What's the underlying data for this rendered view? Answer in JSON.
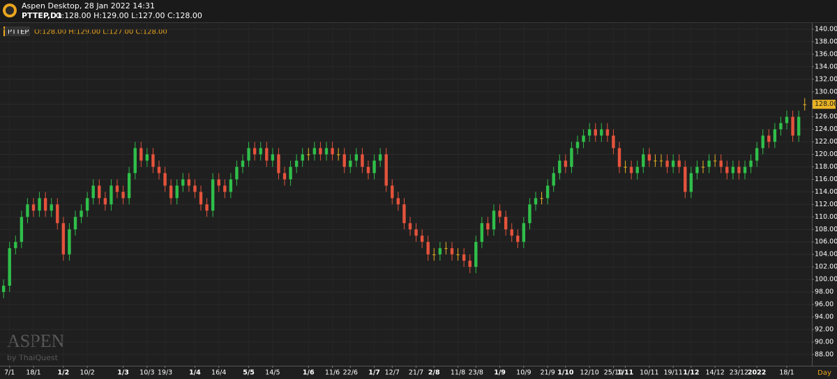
{
  "header": {
    "app_title": "Aspen Desktop, 28 Jan 2022 14:31",
    "symbol": "PTTEP,D1",
    "ohlc": "O:128.00 H:129.00 L:127.00 C:128.00"
  },
  "watermark": {
    "brand": "ASPEN",
    "by": "by ThaiQuest"
  },
  "chart_data": {
    "type": "candlestick",
    "symbol_tag": "PTTEP",
    "ohlc_label": "O:128.00 H:129.00 L:127.00 C:128.00",
    "x_unit": "Day",
    "up_color": "#2fbf4a",
    "down_color": "#e5533c",
    "flat_color": "#e9b324",
    "grid": true,
    "ylim": [
      86.2,
      141
    ],
    "yticks": [
      {
        "value": 88,
        "label": "88.00"
      },
      {
        "value": 90,
        "label": "90.00"
      },
      {
        "value": 92,
        "label": "92.00"
      },
      {
        "value": 94,
        "label": "94.00"
      },
      {
        "value": 96,
        "label": "96.00"
      },
      {
        "value": 98,
        "label": "98.00"
      },
      {
        "value": 100,
        "label": "100.00"
      },
      {
        "value": 102,
        "label": "102.00"
      },
      {
        "value": 104,
        "label": "104.00"
      },
      {
        "value": 106,
        "label": "106.00"
      },
      {
        "value": 108,
        "label": "108.00"
      },
      {
        "value": 110,
        "label": "110.00"
      },
      {
        "value": 112,
        "label": "112.00"
      },
      {
        "value": 114,
        "label": "114.00"
      },
      {
        "value": 116,
        "label": "116.00"
      },
      {
        "value": 118,
        "label": "118.00"
      },
      {
        "value": 120,
        "label": "120.00"
      },
      {
        "value": 122,
        "label": "122.00"
      },
      {
        "value": 124,
        "label": "124.00"
      },
      {
        "value": 126,
        "label": "126.00"
      },
      {
        "value": 128,
        "label": "128.00"
      },
      {
        "value": 130,
        "label": "130.00"
      },
      {
        "value": 132,
        "label": "132.00"
      },
      {
        "value": 134,
        "label": "134.00"
      },
      {
        "value": 136,
        "label": "136.00"
      },
      {
        "value": 138,
        "label": "138.00"
      },
      {
        "value": 140,
        "label": "140.00"
      }
    ],
    "last_price": {
      "value": 128,
      "label": "128.00"
    },
    "xlim": [
      -0.6,
      135.2
    ],
    "xticks": [
      {
        "value": 1,
        "label": "7/1"
      },
      {
        "value": 5,
        "label": "18/1"
      },
      {
        "value": 10,
        "label": "1/2"
      },
      {
        "value": 14,
        "label": "10/2"
      },
      {
        "value": 20,
        "label": "1/3"
      },
      {
        "value": 24,
        "label": "10/3"
      },
      {
        "value": 27,
        "label": "19/3"
      },
      {
        "value": 32,
        "label": "1/4"
      },
      {
        "value": 36,
        "label": "16/4"
      },
      {
        "value": 41,
        "label": "5/5"
      },
      {
        "value": 45,
        "label": "14/5"
      },
      {
        "value": 51,
        "label": "1/6"
      },
      {
        "value": 55,
        "label": "11/6"
      },
      {
        "value": 58,
        "label": "22/6"
      },
      {
        "value": 62,
        "label": "1/7"
      },
      {
        "value": 65,
        "label": "12/7"
      },
      {
        "value": 69,
        "label": "21/7"
      },
      {
        "value": 72,
        "label": "2/8"
      },
      {
        "value": 76,
        "label": "11/8"
      },
      {
        "value": 79,
        "label": "23/8"
      },
      {
        "value": 83,
        "label": "1/9"
      },
      {
        "value": 87,
        "label": "10/9"
      },
      {
        "value": 91,
        "label": "21/9"
      },
      {
        "value": 94,
        "label": "1/10"
      },
      {
        "value": 98,
        "label": "12/10"
      },
      {
        "value": 102,
        "label": "25/10"
      },
      {
        "value": 104,
        "label": "1/11"
      },
      {
        "value": 108,
        "label": "10/11"
      },
      {
        "value": 112,
        "label": "19/11"
      },
      {
        "value": 115,
        "label": "1/12"
      },
      {
        "value": 119,
        "label": "14/12"
      },
      {
        "value": 123,
        "label": "23/12"
      },
      {
        "value": 126,
        "label": "2022"
      },
      {
        "value": 131,
        "label": "18/1"
      }
    ],
    "xtick_major": [
      false,
      false,
      true,
      false,
      true,
      false,
      false,
      true,
      false,
      true,
      false,
      true,
      false,
      false,
      true,
      false,
      false,
      true,
      false,
      false,
      true,
      false,
      false,
      true,
      false,
      false,
      true,
      false,
      false,
      true,
      false,
      false,
      true,
      false
    ],
    "open": [
      98,
      99,
      105,
      106,
      110,
      112,
      111,
      113,
      111,
      112,
      109,
      104,
      108,
      110,
      111,
      113,
      115,
      113,
      112,
      115,
      114,
      113,
      117,
      121,
      119,
      120,
      118,
      117,
      115,
      113,
      115,
      116,
      115,
      114,
      112,
      111,
      116,
      115,
      114,
      116,
      118,
      119,
      121,
      120,
      121,
      119,
      120,
      117,
      116,
      118,
      119,
      120,
      120,
      121,
      120,
      121,
      120,
      120,
      118,
      119,
      120,
      118,
      117,
      119,
      120,
      115,
      113,
      112,
      109,
      108,
      107,
      106,
      104,
      104,
      105,
      105,
      104,
      104,
      103,
      102,
      106,
      109,
      108,
      111,
      110,
      108,
      107,
      106,
      109,
      112,
      113,
      113,
      115,
      117,
      119,
      118,
      121,
      122,
      123,
      124,
      123,
      124,
      123,
      121,
      118,
      118,
      117,
      118,
      120,
      119,
      119,
      119,
      118,
      119,
      118,
      114,
      117,
      118,
      118,
      119,
      119,
      118,
      117,
      118,
      117,
      118,
      119,
      121,
      123,
      122,
      124,
      125,
      126,
      123,
      128
    ],
    "high": [
      100,
      106,
      107,
      111,
      113,
      113,
      114,
      114,
      113,
      113,
      110,
      109,
      111,
      112,
      114,
      116,
      116,
      114,
      116,
      116,
      115,
      118,
      122,
      122,
      121,
      121,
      119,
      118,
      116,
      116,
      117,
      117,
      116,
      115,
      113,
      117,
      117,
      116,
      117,
      119,
      120,
      122,
      122,
      122,
      122,
      121,
      121,
      118,
      119,
      120,
      121,
      121,
      122,
      122,
      122,
      122,
      121,
      121,
      120,
      121,
      121,
      119,
      120,
      121,
      121,
      116,
      114,
      113,
      110,
      109,
      108,
      107,
      105,
      106,
      106,
      106,
      105,
      105,
      104,
      107,
      110,
      110,
      112,
      112,
      111,
      109,
      108,
      110,
      113,
      114,
      114,
      116,
      118,
      120,
      120,
      122,
      123,
      124,
      125,
      125,
      125,
      125,
      124,
      122,
      119,
      119,
      119,
      121,
      121,
      120,
      120,
      120,
      120,
      120,
      119,
      118,
      119,
      119,
      120,
      120,
      120,
      119,
      119,
      119,
      119,
      120,
      122,
      124,
      124,
      125,
      126,
      127,
      127,
      127,
      129
    ],
    "low": [
      97,
      98,
      104,
      105,
      109,
      110,
      110,
      110,
      110,
      108,
      103,
      103,
      107,
      109,
      110,
      112,
      112,
      111,
      111,
      113,
      112,
      112,
      116,
      118,
      118,
      117,
      116,
      114,
      112,
      112,
      114,
      114,
      113,
      111,
      110,
      110,
      114,
      113,
      113,
      115,
      117,
      118,
      119,
      119,
      118,
      118,
      116,
      115,
      115,
      117,
      118,
      119,
      119,
      119,
      119,
      119,
      119,
      117,
      117,
      118,
      117,
      116,
      116,
      118,
      114,
      112,
      111,
      108,
      107,
      106,
      105,
      103,
      103,
      103,
      104,
      103,
      103,
      102,
      101,
      101,
      105,
      107,
      107,
      109,
      107,
      106,
      105,
      105,
      108,
      111,
      112,
      112,
      114,
      116,
      117,
      117,
      120,
      121,
      122,
      122,
      122,
      122,
      120,
      117,
      117,
      116,
      116,
      117,
      118,
      118,
      118,
      117,
      117,
      117,
      113,
      113,
      116,
      117,
      117,
      118,
      117,
      116,
      116,
      116,
      116,
      117,
      118,
      120,
      121,
      121,
      123,
      124,
      122,
      122,
      127
    ],
    "close": [
      99,
      105,
      106,
      110,
      112,
      111,
      113,
      111,
      112,
      109,
      104,
      108,
      110,
      111,
      113,
      115,
      113,
      112,
      115,
      114,
      113,
      117,
      121,
      119,
      120,
      118,
      117,
      115,
      113,
      115,
      116,
      115,
      114,
      112,
      111,
      116,
      115,
      114,
      116,
      118,
      119,
      121,
      120,
      121,
      119,
      120,
      117,
      116,
      118,
      119,
      120,
      120,
      121,
      120,
      121,
      120,
      120,
      118,
      119,
      120,
      118,
      117,
      119,
      120,
      115,
      113,
      112,
      109,
      108,
      107,
      106,
      104,
      104,
      105,
      105,
      104,
      104,
      103,
      102,
      106,
      109,
      108,
      111,
      110,
      108,
      107,
      106,
      109,
      112,
      113,
      113,
      115,
      117,
      119,
      118,
      121,
      122,
      123,
      124,
      123,
      124,
      123,
      121,
      118,
      118,
      117,
      118,
      120,
      119,
      119,
      119,
      118,
      119,
      118,
      114,
      117,
      118,
      118,
      119,
      119,
      118,
      117,
      118,
      117,
      118,
      119,
      121,
      123,
      122,
      124,
      125,
      126,
      123,
      126,
      128
    ]
  }
}
